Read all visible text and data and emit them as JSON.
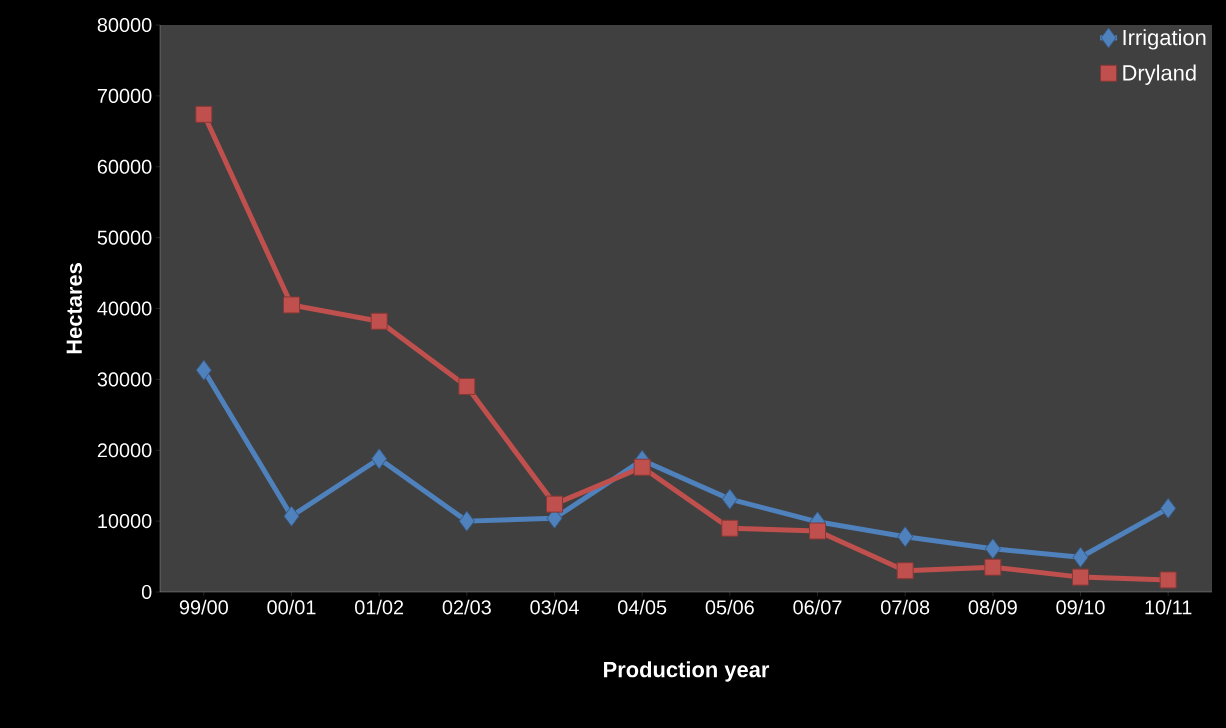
{
  "chart_data": {
    "type": "line",
    "xlabel": "Production year",
    "ylabel": "Hectares",
    "categories": [
      "99/00",
      "00/01",
      "01/02",
      "02/03",
      "03/04",
      "04/05",
      "05/06",
      "06/07",
      "07/08",
      "08/09",
      "09/10",
      "10/11"
    ],
    "series": [
      {
        "name": "Irrigation",
        "color": "#4f81bd",
        "marker": "diamond",
        "values": [
          31300,
          10700,
          18800,
          10000,
          10400,
          18600,
          13100,
          9900,
          7800,
          6100,
          4900,
          11800
        ]
      },
      {
        "name": "Dryland",
        "color": "#c0504d",
        "marker": "square",
        "values": [
          67400,
          40500,
          38200,
          29000,
          12400,
          17600,
          9000,
          8600,
          3000,
          3500,
          2100,
          1700
        ]
      }
    ],
    "ylim": [
      0,
      80000
    ],
    "yticks": [
      0,
      10000,
      20000,
      30000,
      40000,
      50000,
      60000,
      70000,
      80000
    ],
    "grid": false,
    "legend": "top right",
    "line_style": "solid"
  }
}
